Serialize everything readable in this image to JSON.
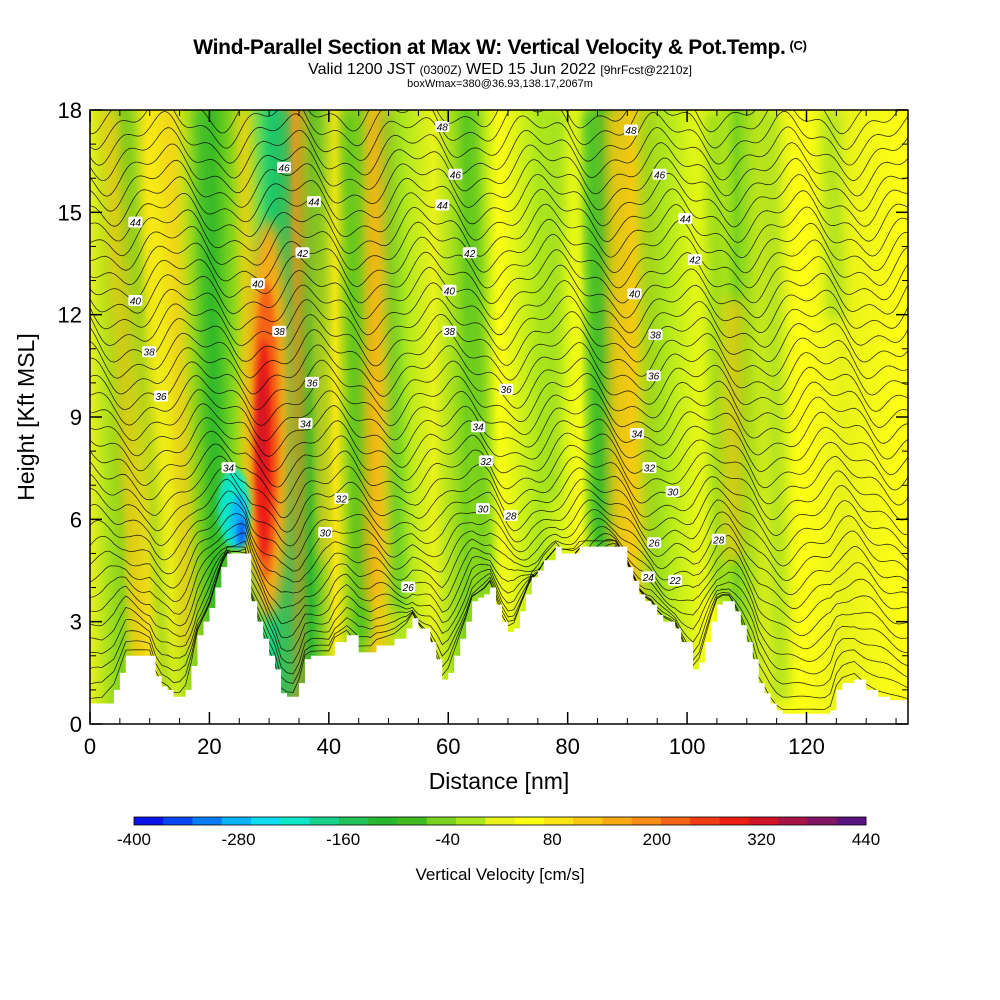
{
  "chart_data": {
    "type": "heatmap",
    "title": "Wind-Parallel Section at Max W: Vertical Velocity & Pot.Temp.",
    "title_mark": "(C)",
    "subtitle": {
      "valid": "Valid 1200 JST",
      "utc": "(0300Z)",
      "date": "WED 15 Jun 2022",
      "forecast": "[9hrFcst@2210z]"
    },
    "subtitle2": "boxWmax=380@36.93,138.17,2067m",
    "xlabel": "Distance [nm]",
    "ylabel": "Height [Kft MSL]",
    "xlim": [
      0,
      137
    ],
    "ylim": [
      0,
      18
    ],
    "x_ticks": [
      "0",
      "20",
      "40",
      "60",
      "80",
      "100",
      "120"
    ],
    "y_ticks": [
      "0",
      "3",
      "6",
      "9",
      "12",
      "15",
      "18"
    ],
    "colorbar": {
      "label": "Vertical Velocity [cm/s]",
      "tick_labels": [
        "-400",
        "-280",
        "-160",
        "-40",
        "80",
        "200",
        "320",
        "440"
      ],
      "colors": [
        "#0a14e6",
        "#0a46f0",
        "#0a7cf5",
        "#0ab4fa",
        "#10dcf0",
        "#10e6c8",
        "#18d28c",
        "#20c25a",
        "#28b830",
        "#40bc20",
        "#78d21e",
        "#aae61c",
        "#e8f21a",
        "#ffff14",
        "#fae614",
        "#f8c814",
        "#f8aa14",
        "#f88c14",
        "#f46414",
        "#f03c14",
        "#ec1e14",
        "#d21428",
        "#a81446",
        "#821464",
        "#5a1482"
      ]
    },
    "isentrope_labels": [
      {
        "v": "34",
        "x": 23.2,
        "y": 7.5
      },
      {
        "v": "36",
        "x": 11.9,
        "y": 9.6
      },
      {
        "v": "38",
        "x": 9.9,
        "y": 10.9
      },
      {
        "v": "40",
        "x": 7.6,
        "y": 12.4
      },
      {
        "v": "44",
        "x": 7.6,
        "y": 14.7
      },
      {
        "v": "40",
        "x": 28.1,
        "y": 12.9
      },
      {
        "v": "38",
        "x": 31.7,
        "y": 11.5
      },
      {
        "v": "36",
        "x": 37.2,
        "y": 10.0
      },
      {
        "v": "34",
        "x": 36.1,
        "y": 8.8
      },
      {
        "v": "32",
        "x": 42.1,
        "y": 6.6
      },
      {
        "v": "30",
        "x": 39.4,
        "y": 5.6
      },
      {
        "v": "26",
        "x": 53.3,
        "y": 4.0
      },
      {
        "v": "46",
        "x": 32.5,
        "y": 16.3
      },
      {
        "v": "44",
        "x": 37.5,
        "y": 15.3
      },
      {
        "v": "42",
        "x": 35.6,
        "y": 13.8
      },
      {
        "v": "48",
        "x": 59.0,
        "y": 17.5
      },
      {
        "v": "46",
        "x": 61.2,
        "y": 16.1
      },
      {
        "v": "44",
        "x": 59.0,
        "y": 15.2
      },
      {
        "v": "42",
        "x": 63.6,
        "y": 13.8
      },
      {
        "v": "40",
        "x": 60.2,
        "y": 12.7
      },
      {
        "v": "38",
        "x": 60.2,
        "y": 11.5
      },
      {
        "v": "36",
        "x": 69.7,
        "y": 9.8
      },
      {
        "v": "34",
        "x": 65.0,
        "y": 8.7
      },
      {
        "v": "32",
        "x": 66.3,
        "y": 7.7
      },
      {
        "v": "30",
        "x": 65.8,
        "y": 6.3
      },
      {
        "v": "28",
        "x": 70.5,
        "y": 6.1
      },
      {
        "v": "48",
        "x": 90.6,
        "y": 17.4
      },
      {
        "v": "46",
        "x": 95.4,
        "y": 16.1
      },
      {
        "v": "44",
        "x": 99.7,
        "y": 14.8
      },
      {
        "v": "42",
        "x": 101.3,
        "y": 13.6
      },
      {
        "v": "40",
        "x": 91.2,
        "y": 12.6
      },
      {
        "v": "38",
        "x": 94.7,
        "y": 11.4
      },
      {
        "v": "36",
        "x": 94.4,
        "y": 10.2
      },
      {
        "v": "34",
        "x": 91.6,
        "y": 8.5
      },
      {
        "v": "32",
        "x": 93.7,
        "y": 7.5
      },
      {
        "v": "30",
        "x": 97.6,
        "y": 6.8
      },
      {
        "v": "26",
        "x": 94.5,
        "y": 5.3
      },
      {
        "v": "24",
        "x": 93.5,
        "y": 4.3
      },
      {
        "v": "22",
        "x": 98.0,
        "y": 4.2
      },
      {
        "v": "28",
        "x": 105.3,
        "y": 5.4
      }
    ],
    "terrain": [
      [
        0,
        0.6
      ],
      [
        2,
        0.6
      ],
      [
        4,
        1.0
      ],
      [
        5,
        1.5
      ],
      [
        6,
        2.0
      ],
      [
        10,
        2.0
      ],
      [
        11,
        1.4
      ],
      [
        12,
        1.1
      ],
      [
        13,
        1.0
      ],
      [
        14,
        0.8
      ],
      [
        15,
        0.8
      ],
      [
        16,
        1.0
      ],
      [
        17,
        1.7
      ],
      [
        18,
        2.6
      ],
      [
        19,
        3.0
      ],
      [
        20,
        3.4
      ],
      [
        21,
        4.0
      ],
      [
        22,
        4.6
      ],
      [
        23,
        5.0
      ],
      [
        26,
        5.0
      ],
      [
        27,
        3.6
      ],
      [
        28,
        3.0
      ],
      [
        29,
        2.5
      ],
      [
        30,
        2.0
      ],
      [
        31,
        1.6
      ],
      [
        32,
        0.9
      ],
      [
        33,
        0.8
      ],
      [
        34,
        0.8
      ],
      [
        35,
        1.2
      ],
      [
        36,
        1.9
      ],
      [
        37,
        2.0
      ],
      [
        39,
        2.0
      ],
      [
        40,
        2.0
      ],
      [
        41,
        2.4
      ],
      [
        43,
        2.6
      ],
      [
        45,
        2.1
      ],
      [
        47,
        2.1
      ],
      [
        48,
        2.3
      ],
      [
        51,
        2.5
      ],
      [
        53,
        2.8
      ],
      [
        54,
        3.1
      ],
      [
        55,
        2.8
      ],
      [
        57,
        2.4
      ],
      [
        58,
        1.9
      ],
      [
        59,
        1.3
      ],
      [
        60,
        1.5
      ],
      [
        61,
        2.0
      ],
      [
        62,
        2.5
      ],
      [
        63,
        3.0
      ],
      [
        64,
        3.6
      ],
      [
        65,
        3.7
      ],
      [
        66,
        3.8
      ],
      [
        67,
        4.0
      ],
      [
        68,
        3.5
      ],
      [
        69,
        3.0
      ],
      [
        70,
        2.7
      ],
      [
        71,
        2.8
      ],
      [
        72,
        3.3
      ],
      [
        73,
        3.8
      ],
      [
        74,
        4.3
      ],
      [
        75,
        4.5
      ],
      [
        76,
        4.8
      ],
      [
        78,
        5.2
      ],
      [
        79,
        5.0
      ],
      [
        81,
        5.0
      ],
      [
        82,
        5.2
      ],
      [
        86,
        5.2
      ],
      [
        88,
        5.2
      ],
      [
        90,
        4.6
      ],
      [
        91,
        4.2
      ],
      [
        92,
        3.8
      ],
      [
        93,
        3.6
      ],
      [
        94,
        3.5
      ],
      [
        95,
        3.2
      ],
      [
        96,
        3.0
      ],
      [
        98,
        2.8
      ],
      [
        99,
        2.4
      ],
      [
        101,
        1.6
      ],
      [
        102,
        1.8
      ],
      [
        103,
        2.4
      ],
      [
        104,
        3.0
      ],
      [
        105,
        3.5
      ],
      [
        106,
        3.6
      ],
      [
        107,
        3.6
      ],
      [
        108,
        3.3
      ],
      [
        109,
        2.9
      ],
      [
        110,
        2.4
      ],
      [
        111,
        1.9
      ],
      [
        112,
        1.2
      ],
      [
        113,
        0.9
      ],
      [
        114,
        0.6
      ],
      [
        115,
        0.4
      ],
      [
        116,
        0.3
      ],
      [
        119,
        0.3
      ],
      [
        120,
        0.3
      ],
      [
        123,
        0.3
      ],
      [
        124,
        0.4
      ],
      [
        125,
        1.0
      ],
      [
        126,
        1.2
      ],
      [
        128,
        1.3
      ],
      [
        130,
        1.0
      ],
      [
        132,
        0.8
      ],
      [
        134,
        0.7
      ],
      [
        137,
        0.6
      ]
    ]
  }
}
